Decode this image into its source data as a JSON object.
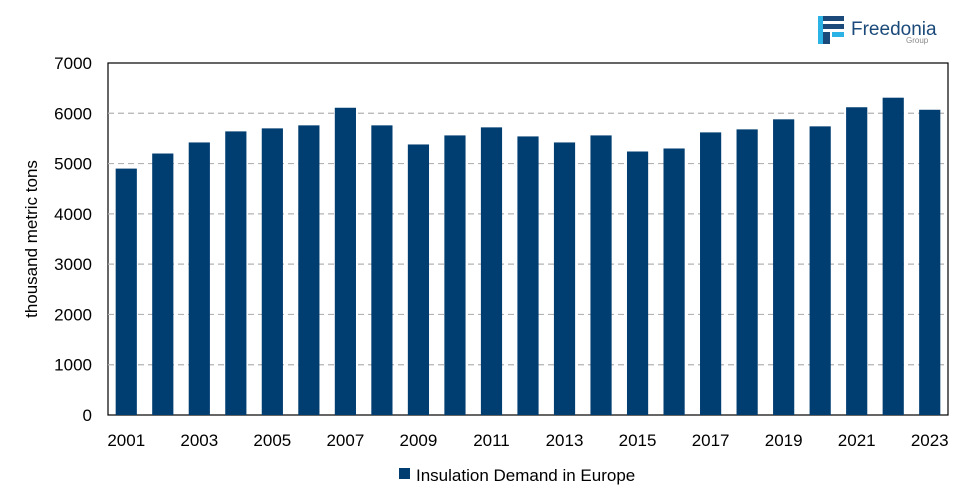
{
  "logo": {
    "name": "Freedonia",
    "sub": "Group"
  },
  "colors": {
    "bar": "#003d71",
    "grid": "#b3b3b3",
    "axis": "#000000"
  },
  "chart_data": {
    "type": "bar",
    "title": "",
    "xlabel": "",
    "ylabel": "thousand metric tons",
    "ylim": [
      0,
      7000
    ],
    "yticks": [
      0,
      1000,
      2000,
      3000,
      4000,
      5000,
      6000,
      7000
    ],
    "grid": "horizontal dashed",
    "legend_position": "bottom",
    "categories": [
      "2001",
      "2002",
      "2003",
      "2004",
      "2005",
      "2006",
      "2007",
      "2008",
      "2009",
      "2010",
      "2011",
      "2012",
      "2013",
      "2014",
      "2015",
      "2016",
      "2017",
      "2018",
      "2019",
      "2020",
      "2021",
      "2022",
      "2023"
    ],
    "xtick_labels": [
      "2001",
      "2003",
      "2005",
      "2007",
      "2009",
      "2011",
      "2013",
      "2015",
      "2017",
      "2019",
      "2021",
      "2023"
    ],
    "series": [
      {
        "name": "Insulation Demand in Europe",
        "values": [
          4900,
          5200,
          5420,
          5640,
          5700,
          5760,
          6110,
          5760,
          5380,
          5560,
          5720,
          5540,
          5420,
          5560,
          5240,
          5300,
          5620,
          5680,
          5880,
          5740,
          6120,
          6310,
          6070
        ]
      }
    ]
  }
}
